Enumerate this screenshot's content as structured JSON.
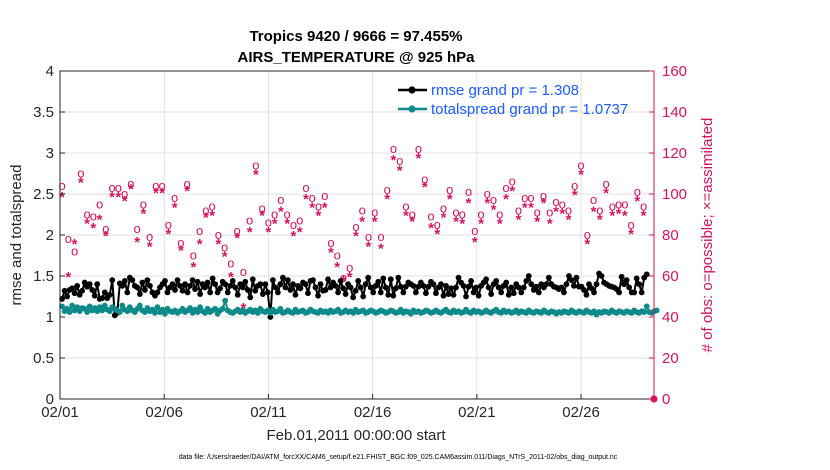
{
  "chart_data": {
    "type": "line",
    "title": "Tropics 9420 / 9666 = 97.455%",
    "subtitle": "AIRS_TEMPERATURE @ 925 hPa",
    "xlabel": "Feb.01,2011 00:00:00 start",
    "ylabel": "rmse and totalspread",
    "y2label": "# of obs: o=possible; ×=assimilated",
    "footnote": "data file: /Users/raeder/DAI/ATM_forcXX/CAM6_setup/f.e21.FHIST_BGC.f09_025.CAM6assim.011/Diags_NTrS_2011-02/obs_diag_output.nc",
    "xlim": [
      0,
      28.5
    ],
    "x_ticks": [
      0,
      5,
      10,
      15,
      20,
      25
    ],
    "x_tick_labels": [
      "02/01",
      "02/06",
      "02/11",
      "02/16",
      "02/21",
      "02/26"
    ],
    "ylim": [
      0,
      4
    ],
    "y_ticks": [
      0,
      0.5,
      1,
      1.5,
      2,
      2.5,
      3,
      3.5,
      4
    ],
    "y_tick_labels": [
      "0",
      "0.5",
      "1",
      "1.5",
      "2",
      "2.5",
      "3",
      "3.5",
      "4"
    ],
    "y2lim": [
      0,
      160
    ],
    "y2_ticks": [
      0,
      20,
      40,
      60,
      80,
      100,
      120,
      140,
      160
    ],
    "y2_tick_labels": [
      "0",
      "20",
      "40",
      "60",
      "80",
      "100",
      "120",
      "140",
      "160"
    ],
    "legend_position": "top-right",
    "colors": {
      "rmse": "#000000",
      "spread": "#0f8a8a",
      "obs": "#d6135d",
      "legend_text": "#1a5cff",
      "axis": "#262626"
    },
    "series": [
      {
        "name": "rmse grand pr = 1.308",
        "key": "rmse",
        "values": [
          1.22,
          1.32,
          1.25,
          1.33,
          1.35,
          1.29,
          1.38,
          1.27,
          1.32,
          1.42,
          1.37,
          1.4,
          1.33,
          1.26,
          1.4,
          1.22,
          1.23,
          1.3,
          1.23,
          1.27,
          1.45,
          1.02,
          1.05,
          1.41,
          1.38,
          1.44,
          1.3,
          1.48,
          1.45,
          1.38,
          1.36,
          1.28,
          1.42,
          1.33,
          1.45,
          1.38,
          1.3,
          1.26,
          1.3,
          1.36,
          1.4,
          1.44,
          1.3,
          1.36,
          1.4,
          1.33,
          1.45,
          1.38,
          1.32,
          1.4,
          1.3,
          1.38,
          1.45,
          1.34,
          1.43,
          1.28,
          1.4,
          1.36,
          1.42,
          1.3,
          1.47,
          1.4,
          1.3,
          1.35,
          1.43,
          1.4,
          1.3,
          1.38,
          1.44,
          1.36,
          1.27,
          1.4,
          1.36,
          1.43,
          1.33,
          1.24,
          1.46,
          1.32,
          1.38,
          1.4,
          1.28,
          1.4,
          1.3,
          1.0,
          1.45,
          1.36,
          1.3,
          1.4,
          1.48,
          1.36,
          1.45,
          1.33,
          1.4,
          1.27,
          1.38,
          1.35,
          1.42,
          1.4,
          1.29,
          1.44,
          1.45,
          1.36,
          1.26,
          1.4,
          1.32,
          1.33,
          1.46,
          1.36,
          1.42,
          1.38,
          1.3,
          1.44,
          1.35,
          1.28,
          1.4,
          1.36,
          1.24,
          1.32,
          1.44,
          1.36,
          1.25,
          1.4,
          1.48,
          1.36,
          1.3,
          1.38,
          1.43,
          1.3,
          1.47,
          1.36,
          1.27,
          1.46,
          1.26,
          1.35,
          1.48,
          1.37,
          1.3,
          1.37,
          1.42,
          1.4,
          1.38,
          1.3,
          1.37,
          1.42,
          1.38,
          1.29,
          1.37,
          1.43,
          1.4,
          1.29,
          1.36,
          1.4,
          1.26,
          1.38,
          1.28,
          1.35,
          1.27,
          1.36,
          1.48,
          1.42,
          1.38,
          1.25,
          1.37,
          1.44,
          1.3,
          1.36,
          1.26,
          1.38,
          1.42,
          1.46,
          1.36,
          1.28,
          1.4,
          1.44,
          1.36,
          1.3,
          1.38,
          1.42,
          1.27,
          1.36,
          1.29,
          1.4,
          1.36,
          1.3,
          1.36,
          1.44,
          1.5,
          1.4,
          1.33,
          1.37,
          1.3,
          1.4,
          1.36,
          1.4,
          1.48,
          1.4,
          1.37,
          1.36,
          1.34,
          1.36,
          1.3,
          1.4,
          1.5,
          1.45,
          1.38,
          1.48,
          1.37,
          1.37,
          1.33,
          1.27,
          1.4,
          1.35,
          1.3,
          1.4,
          1.53,
          1.5,
          1.42,
          1.4,
          1.38,
          1.37,
          1.36,
          1.34,
          1.3,
          1.49,
          1.4,
          1.45,
          1.36,
          1.3,
          1.3,
          1.47,
          1.4,
          1.3,
          1.48,
          1.52
        ]
      },
      {
        "name": "totalspread grand pr = 1.0737",
        "key": "spread",
        "values": [
          1.13,
          1.07,
          1.1,
          1.06,
          1.14,
          1.08,
          1.12,
          1.07,
          1.11,
          1.1,
          1.06,
          1.13,
          1.08,
          1.11,
          1.07,
          1.12,
          1.08,
          1.14,
          1.09,
          1.07,
          1.12,
          1.1,
          1.08,
          1.06,
          1.14,
          1.09,
          1.07,
          1.12,
          1.08,
          1.06,
          1.1,
          1.14,
          1.08,
          1.06,
          1.11,
          1.07,
          1.09,
          1.05,
          1.12,
          1.06,
          1.09,
          1.04,
          1.1,
          1.07,
          1.06,
          1.08,
          1.05,
          1.07,
          1.1,
          1.06,
          1.08,
          1.11,
          1.05,
          1.09,
          1.06,
          1.12,
          1.07,
          1.05,
          1.1,
          1.06,
          1.08,
          1.1,
          1.04,
          1.08,
          1.1,
          1.2,
          1.08,
          1.06,
          1.05,
          1.07,
          1.09,
          1.06,
          1.08,
          1.05,
          1.07,
          1.09,
          1.06,
          1.08,
          1.05,
          1.1,
          1.07,
          1.06,
          1.08,
          1.05,
          1.09,
          1.06,
          1.07,
          1.1,
          1.05,
          1.06,
          1.08,
          1.06,
          1.05,
          1.09,
          1.06,
          1.07,
          1.08,
          1.05,
          1.06,
          1.09,
          1.07,
          1.06,
          1.05,
          1.08,
          1.06,
          1.07,
          1.05,
          1.08,
          1.06,
          1.07,
          1.09,
          1.05,
          1.06,
          1.08,
          1.06,
          1.07,
          1.05,
          1.09,
          1.06,
          1.07,
          1.08,
          1.05,
          1.06,
          1.08,
          1.07,
          1.05,
          1.06,
          1.08,
          1.07,
          1.05,
          1.06,
          1.08,
          1.07,
          1.05,
          1.06,
          1.09,
          1.05,
          1.07,
          1.06,
          1.04,
          1.08,
          1.06,
          1.07,
          1.05,
          1.06,
          1.08,
          1.07,
          1.05,
          1.06,
          1.08,
          1.06,
          1.05,
          1.07,
          1.09,
          1.06,
          1.05,
          1.08,
          1.06,
          1.07,
          1.05,
          1.06,
          1.09,
          1.06,
          1.05,
          1.08,
          1.06,
          1.07,
          1.05,
          1.06,
          1.08,
          1.06,
          1.05,
          1.07,
          1.09,
          1.06,
          1.05,
          1.08,
          1.06,
          1.07,
          1.05,
          1.06,
          1.08,
          1.05,
          1.07,
          1.06,
          1.05,
          1.08,
          1.06,
          1.05,
          1.07,
          1.06,
          1.05,
          1.08,
          1.06,
          1.05,
          1.07,
          1.06,
          1.04,
          1.06,
          1.05,
          1.07,
          1.06,
          1.05,
          1.08,
          1.06,
          1.05,
          1.07,
          1.06,
          1.05,
          1.08,
          1.06,
          1.05,
          1.07,
          1.03,
          1.06,
          1.05,
          1.07,
          1.06,
          1.05,
          1.08,
          1.06,
          1.05,
          1.07,
          1.06,
          1.05,
          1.07,
          1.06,
          1.05,
          1.08,
          1.06,
          1.05,
          1.07,
          1.06,
          1.13,
          1.06,
          1.05,
          1.07,
          1.08
        ]
      }
    ],
    "obs": {
      "possible_x": [
        0.1,
        0.4,
        0.7,
        1.0,
        1.3,
        1.6,
        1.9,
        2.2,
        2.5,
        2.8,
        3.1,
        3.4,
        3.7,
        4.0,
        4.3,
        4.6,
        4.9,
        5.2,
        5.5,
        5.8,
        6.1,
        6.4,
        6.7,
        7.0,
        7.3,
        7.6,
        7.9,
        8.2,
        8.5,
        8.8,
        9.1,
        9.4,
        9.7,
        10.0,
        10.3,
        10.6,
        10.9,
        11.2,
        11.5,
        11.8,
        12.1,
        12.4,
        12.7,
        13.0,
        13.3,
        13.6,
        13.9,
        14.2,
        14.5,
        14.8,
        15.1,
        15.4,
        15.7,
        16.0,
        16.3,
        16.6,
        16.9,
        17.2,
        17.5,
        17.8,
        18.1,
        18.4,
        18.7,
        19.0,
        19.3,
        19.6,
        19.9,
        20.2,
        20.5,
        20.8,
        21.1,
        21.4,
        21.7,
        22.0,
        22.3,
        22.6,
        22.9,
        23.2,
        23.5,
        23.8,
        24.1,
        24.4,
        24.7,
        25.0,
        25.3,
        25.6,
        25.9,
        26.2,
        26.5,
        26.8,
        27.1,
        27.4,
        27.7,
        28.0
      ],
      "possible": [
        104,
        78,
        72,
        110,
        90,
        89,
        95,
        83,
        103,
        103,
        100,
        105,
        83,
        95,
        79,
        104,
        104,
        85,
        98,
        76,
        105,
        70,
        82,
        92,
        94,
        80,
        74,
        66,
        82,
        62,
        87,
        114,
        93,
        86,
        90,
        97,
        90,
        85,
        87,
        103,
        98,
        94,
        99,
        76,
        70,
        59,
        64,
        84,
        92,
        79,
        91,
        79,
        102,
        122,
        116,
        94,
        90,
        122,
        107,
        89,
        85,
        93,
        102,
        91,
        90,
        101,
        82,
        90,
        100,
        97,
        90,
        103,
        106,
        92,
        98,
        98,
        91,
        99,
        91,
        96,
        95,
        92,
        104,
        114,
        80,
        97,
        92,
        105,
        94,
        95,
        95,
        85,
        101,
        94
      ],
      "assim_x": [
        0.1,
        0.4,
        0.7,
        1.0,
        1.3,
        1.6,
        1.9,
        2.2,
        2.5,
        2.8,
        3.1,
        3.4,
        3.7,
        4.0,
        4.3,
        4.6,
        4.9,
        5.2,
        5.5,
        5.8,
        6.1,
        6.4,
        6.7,
        7.0,
        7.3,
        7.6,
        7.9,
        8.2,
        8.5,
        8.8,
        9.1,
        9.4,
        9.7,
        10.0,
        10.3,
        10.6,
        10.9,
        11.2,
        11.5,
        11.8,
        12.1,
        12.4,
        12.7,
        13.0,
        13.3,
        13.6,
        13.9,
        14.2,
        14.5,
        14.8,
        15.1,
        15.4,
        15.7,
        16.0,
        16.3,
        16.6,
        16.9,
        17.2,
        17.5,
        17.8,
        18.1,
        18.4,
        18.7,
        19.0,
        19.3,
        19.6,
        19.9,
        20.2,
        20.5,
        20.8,
        21.1,
        21.4,
        21.7,
        22.0,
        22.3,
        22.6,
        22.9,
        23.2,
        23.5,
        23.8,
        24.1,
        24.4,
        24.7,
        25.0,
        25.3,
        25.6,
        25.9,
        26.2,
        26.5,
        26.8,
        27.1,
        27.4,
        27.7,
        28.0
      ],
      "assimilated": [
        99,
        60,
        76,
        106,
        86,
        84,
        88,
        80,
        99,
        99,
        97,
        103,
        77,
        91,
        75,
        101,
        101,
        81,
        94,
        73,
        102,
        65,
        76,
        89,
        90,
        76,
        70,
        60,
        79,
        45,
        82,
        110,
        90,
        82,
        86,
        92,
        86,
        80,
        82,
        98,
        94,
        90,
        94,
        72,
        65,
        58,
        60,
        80,
        87,
        75,
        87,
        74,
        98,
        117,
        112,
        90,
        87,
        118,
        104,
        84,
        81,
        89,
        98,
        87,
        86,
        96,
        77,
        86,
        96,
        93,
        86,
        98,
        102,
        88,
        94,
        94,
        87,
        96,
        86,
        92,
        91,
        88,
        100,
        110,
        76,
        92,
        88,
        101,
        90,
        91,
        90,
        81,
        97,
        90
      ]
    }
  }
}
